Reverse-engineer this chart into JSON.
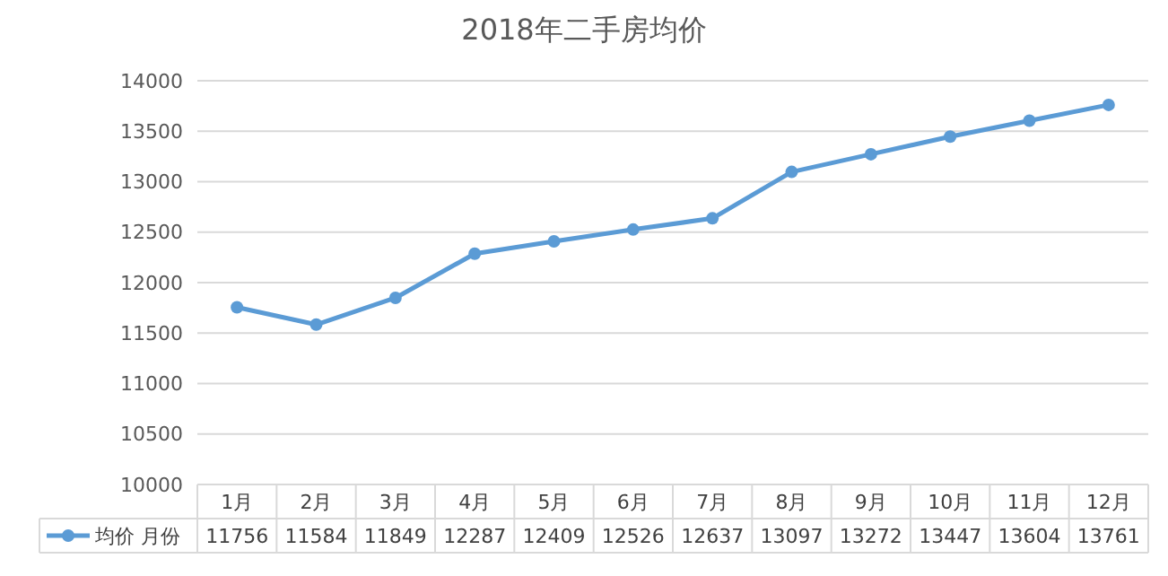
{
  "chart_data": {
    "type": "line",
    "title": "2018年二手房均价",
    "categories": [
      "1月",
      "2月",
      "3月",
      "4月",
      "5月",
      "6月",
      "7月",
      "8月",
      "9月",
      "10月",
      "11月",
      "12月"
    ],
    "series": [
      {
        "name": "均价 月份",
        "color": "#5b9bd5",
        "values": [
          11756,
          11584,
          11849,
          12287,
          12409,
          12526,
          12637,
          13097,
          13272,
          13447,
          13604,
          13761
        ]
      }
    ],
    "ylim": [
      10000,
      14000
    ],
    "yticks": [
      10000,
      10500,
      11000,
      11500,
      12000,
      12500,
      13000,
      13500,
      14000
    ],
    "grid": "y",
    "marker": "circle",
    "data_labels": true,
    "legend": "bottom"
  }
}
